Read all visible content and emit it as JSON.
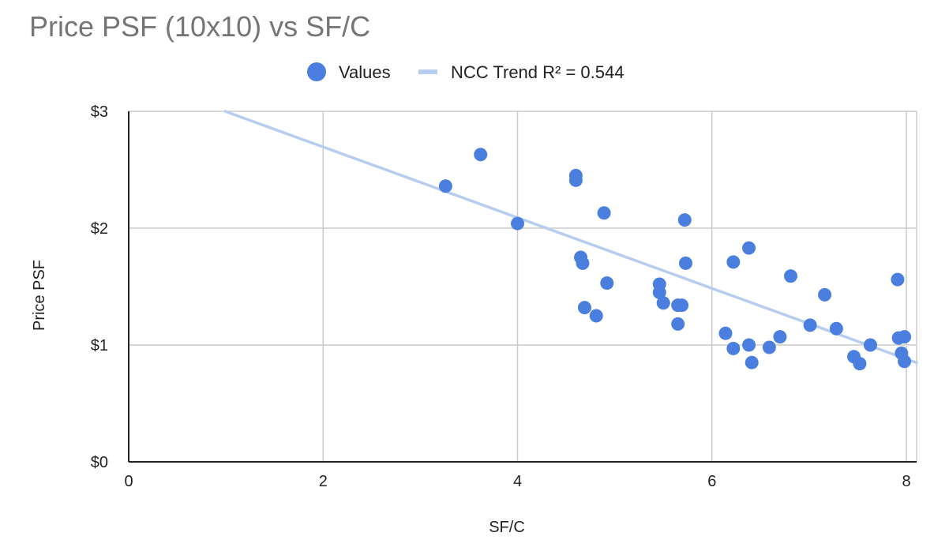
{
  "chart_data": {
    "type": "scatter",
    "title": "Price PSF (10x10) vs SF/C",
    "xlabel": "SF/C",
    "ylabel": "Price PSF",
    "xlim": [
      0,
      8
    ],
    "ylim": [
      0,
      3
    ],
    "xticks": [
      0,
      2,
      4,
      6,
      8
    ],
    "yticks": [
      0,
      1,
      2,
      3
    ],
    "ytick_labels": [
      "$0",
      "$1",
      "$2",
      "$3"
    ],
    "grid": true,
    "legend": {
      "placement": "top-center",
      "entries": [
        {
          "label": "Values",
          "kind": "marker"
        },
        {
          "label": "NCC Trend R² = 0.544",
          "kind": "line"
        }
      ]
    },
    "colors": {
      "points": "#4a7fe0",
      "trend": "#b7cdf0",
      "grid": "#cccccc",
      "axis": "#222222"
    },
    "trend": {
      "x": [
        0,
        8
      ],
      "y": [
        3.3,
        0.88
      ]
    },
    "series": [
      {
        "name": "Values",
        "points": [
          [
            3.26,
            2.36
          ],
          [
            3.62,
            2.63
          ],
          [
            4.0,
            2.04
          ],
          [
            4.6,
            2.45
          ],
          [
            4.6,
            2.41
          ],
          [
            4.65,
            1.75
          ],
          [
            4.67,
            1.7
          ],
          [
            4.69,
            1.32
          ],
          [
            4.81,
            1.25
          ],
          [
            4.89,
            2.13
          ],
          [
            4.92,
            1.53
          ],
          [
            5.46,
            1.52
          ],
          [
            5.46,
            1.45
          ],
          [
            5.5,
            1.36
          ],
          [
            5.65,
            1.18
          ],
          [
            5.65,
            1.34
          ],
          [
            5.69,
            1.34
          ],
          [
            5.72,
            2.07
          ],
          [
            5.73,
            1.7
          ],
          [
            6.14,
            1.1
          ],
          [
            6.22,
            1.71
          ],
          [
            6.22,
            0.97
          ],
          [
            6.38,
            1.83
          ],
          [
            6.38,
            1.0
          ],
          [
            6.41,
            0.85
          ],
          [
            6.59,
            0.98
          ],
          [
            6.7,
            1.07
          ],
          [
            6.81,
            1.59
          ],
          [
            7.01,
            1.17
          ],
          [
            7.16,
            1.43
          ],
          [
            7.28,
            1.14
          ],
          [
            7.46,
            0.9
          ],
          [
            7.52,
            0.84
          ],
          [
            7.63,
            1.0
          ],
          [
            7.91,
            1.56
          ],
          [
            7.92,
            1.06
          ],
          [
            7.95,
            0.93
          ],
          [
            7.98,
            1.07
          ],
          [
            7.98,
            0.86
          ]
        ]
      }
    ]
  }
}
